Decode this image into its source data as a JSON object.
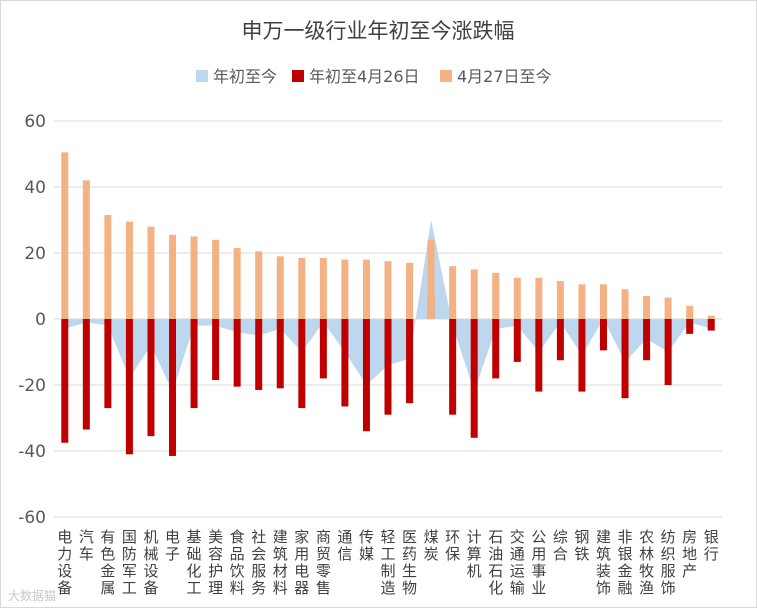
{
  "chart_data": {
    "type": "bar",
    "title": "申万一级行业年初至今涨跌幅",
    "ylim": [
      -60,
      60
    ],
    "yticks": [
      60,
      40,
      20,
      0,
      -20,
      -40,
      -60
    ],
    "grid": true,
    "legend_position": "top",
    "categories": [
      "电力设备",
      "汽车",
      "有色金属",
      "国防军工",
      "机械设备",
      "电子",
      "基础化工",
      "美容护理",
      "食品饮料",
      "社会服务",
      "建筑材料",
      "家用电器",
      "商贸零售",
      "通信",
      "传媒",
      "轻工制造",
      "医药生物",
      "煤炭",
      "环保",
      "计算机",
      "石油石化",
      "交通运输",
      "公用事业",
      "综合",
      "钢铁",
      "建筑装饰",
      "非银金融",
      "农林牧渔",
      "纺织服饰",
      "房地产",
      "银行"
    ],
    "series": [
      {
        "name": "年初至今",
        "kind": "area",
        "color": "#bdd7ee",
        "values": [
          -3,
          -1,
          -2,
          -18,
          -8,
          -22,
          -2,
          -2,
          -4,
          -5,
          -3,
          -10,
          -1,
          -10,
          -20,
          -14,
          -12,
          30,
          -2,
          -22,
          -3,
          -2,
          -10,
          -1,
          -11,
          0,
          -13,
          -6,
          -10,
          -1,
          -3
        ]
      },
      {
        "name": "年初至4月26日",
        "kind": "bar",
        "color": "#c00000",
        "values": [
          -37.5,
          -33.5,
          -27,
          -41,
          -35.5,
          -41.5,
          -27,
          -18.5,
          -20.5,
          -21.5,
          -21,
          -27,
          -18,
          -26.5,
          -34,
          -29,
          -25.5,
          7,
          -29,
          -36,
          -18,
          -13,
          -22,
          -12.5,
          -22,
          -9.5,
          -24,
          -12.5,
          -20,
          -4.5,
          -3.5
        ]
      },
      {
        "name": "4月27日至今",
        "kind": "bar",
        "color": "#f4b183",
        "values": [
          50.5,
          42,
          31.5,
          29.5,
          28,
          25.5,
          25,
          24,
          21.5,
          20.5,
          19,
          18.5,
          18.5,
          18,
          18,
          17.5,
          17,
          24,
          16,
          15,
          14,
          12.5,
          12.5,
          11.5,
          10.5,
          10.5,
          9,
          7,
          6.5,
          4,
          1
        ]
      }
    ]
  },
  "watermark": "大数据猫"
}
